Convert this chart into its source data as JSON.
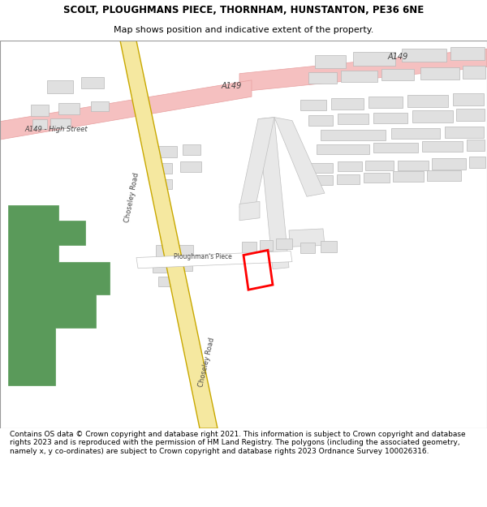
{
  "title_line1": "SCOLT, PLOUGHMANS PIECE, THORNHAM, HUNSTANTON, PE36 6NE",
  "title_line2": "Map shows position and indicative extent of the property.",
  "footer": "Contains OS data © Crown copyright and database right 2021. This information is subject to Crown copyright and database rights 2023 and is reproduced with the permission of HM Land Registry. The polygons (including the associated geometry, namely x, y co-ordinates) are subject to Crown copyright and database rights 2023 Ordnance Survey 100026316.",
  "bg_color": "#ffffff",
  "map_bg": "#f2f2f2",
  "road_major_color": "#f5c0c0",
  "road_major_border": "#e8a0a0",
  "choseley_fill": "#f5e8a0",
  "choseley_border": "#c8a800",
  "building_color": "#e0e0e0",
  "building_border": "#b8b8b8",
  "green_color": "#5a9a5a",
  "plot_color": "#ff0000",
  "road_inner": "#e8e8e8",
  "road_border": "#c0c0c0"
}
